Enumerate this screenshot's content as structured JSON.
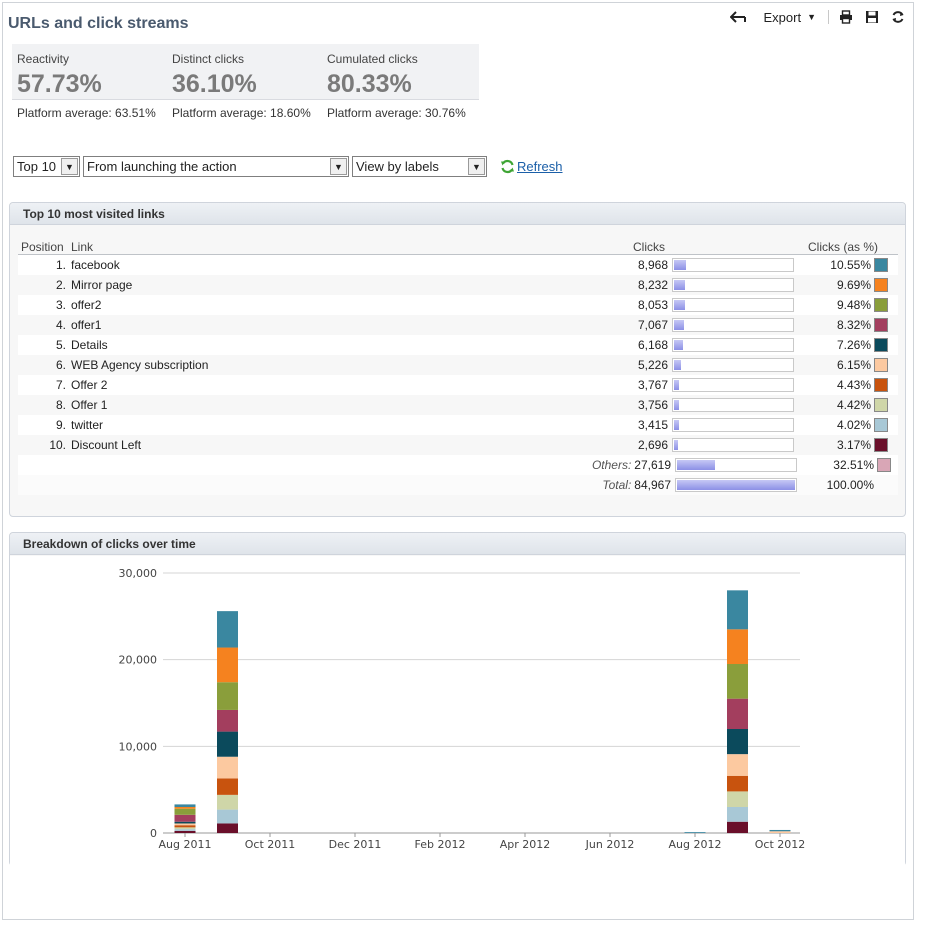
{
  "title": "URLs and click streams",
  "toolbar": {
    "export_label": "Export"
  },
  "kpis": [
    {
      "label": "Reactivity",
      "value": "57.73%",
      "average": "Platform average: 63.51%"
    },
    {
      "label": "Distinct clicks",
      "value": "36.10%",
      "average": "Platform average: 18.60%"
    },
    {
      "label": "Cumulated clicks",
      "value": "80.33%",
      "average": "Platform average: 30.76%"
    }
  ],
  "filters": {
    "top": "Top 10",
    "period": "From launching the action",
    "view": "View by labels",
    "refresh_label": "Refresh"
  },
  "links_panel": {
    "title": "Top 10 most visited links",
    "headers": {
      "position": "Position",
      "link": "Link",
      "clicks": "Clicks",
      "percent": "Clicks (as %)"
    },
    "rows": [
      {
        "pos": "1.",
        "link": "facebook",
        "clicks": "8,968",
        "pct": "10.55%",
        "share": 0.1055,
        "color": "#3a87a0"
      },
      {
        "pos": "2.",
        "link": "Mirror page",
        "clicks": "8,232",
        "pct": "9.69%",
        "share": 0.0969,
        "color": "#f5821f"
      },
      {
        "pos": "3.",
        "link": "offer2",
        "clicks": "8,053",
        "pct": "9.48%",
        "share": 0.0948,
        "color": "#8a9e3b"
      },
      {
        "pos": "4.",
        "link": "offer1",
        "clicks": "7,067",
        "pct": "8.32%",
        "share": 0.0832,
        "color": "#a33e5e"
      },
      {
        "pos": "5.",
        "link": "Details",
        "clicks": "6,168",
        "pct": "7.26%",
        "share": 0.0726,
        "color": "#0b4a5c"
      },
      {
        "pos": "6.",
        "link": "WEB Agency subscription",
        "clicks": "5,226",
        "pct": "6.15%",
        "share": 0.0615,
        "color": "#fcc9a0"
      },
      {
        "pos": "7.",
        "link": "Offer 2",
        "clicks": "3,767",
        "pct": "4.43%",
        "share": 0.0443,
        "color": "#c8530e"
      },
      {
        "pos": "8.",
        "link": "Offer 1",
        "clicks": "3,756",
        "pct": "4.42%",
        "share": 0.0442,
        "color": "#cfd6a8"
      },
      {
        "pos": "9.",
        "link": "twitter",
        "clicks": "3,415",
        "pct": "4.02%",
        "share": 0.0402,
        "color": "#a8c8d6"
      },
      {
        "pos": "10.",
        "link": "Discount Left",
        "clicks": "2,696",
        "pct": "3.17%",
        "share": 0.0317,
        "color": "#6a0f2a"
      }
    ],
    "others": {
      "label": "Others:",
      "clicks": "27,619",
      "pct": "32.51%",
      "share": 0.3251,
      "color": "#d9a6b6"
    },
    "total": {
      "label": "Total:",
      "clicks": "84,967",
      "pct": "100.00%",
      "share": 1.0
    }
  },
  "time_panel": {
    "title": "Breakdown of clicks over time"
  },
  "chart_data": {
    "type": "bar",
    "stacked": true,
    "categories": [
      "Aug 2011",
      "Sep 2011",
      "Aug 2012",
      "Sep 2012",
      "Oct 2012"
    ],
    "x_tick_labels": [
      "Aug 2011",
      "Oct 2011",
      "Dec 2011",
      "Feb 2012",
      "Apr 2012",
      "Jun 2012",
      "Aug 2012",
      "Oct 2012"
    ],
    "y_tick_labels": [
      "0",
      "10,000",
      "20,000",
      "30,000"
    ],
    "ylim": [
      0,
      30000
    ],
    "grid": true,
    "series": [
      {
        "name": "Discount Left",
        "color": "#6a0f2a",
        "values": [
          250,
          1100,
          0,
          1300,
          0
        ]
      },
      {
        "name": "twitter",
        "color": "#a8c8d6",
        "values": [
          200,
          1600,
          0,
          1700,
          0
        ]
      },
      {
        "name": "Offer 1",
        "color": "#cfd6a8",
        "values": [
          200,
          1700,
          0,
          1800,
          0
        ]
      },
      {
        "name": "Offer 2",
        "color": "#c8530e",
        "values": [
          250,
          1900,
          0,
          1800,
          0
        ]
      },
      {
        "name": "WEB Agency subscription",
        "color": "#fcc9a0",
        "values": [
          200,
          2500,
          0,
          2500,
          200
        ]
      },
      {
        "name": "Details",
        "color": "#0b4a5c",
        "values": [
          200,
          2900,
          0,
          2900,
          0
        ]
      },
      {
        "name": "offer1",
        "color": "#a33e5e",
        "values": [
          800,
          2500,
          0,
          3500,
          0
        ]
      },
      {
        "name": "offer2",
        "color": "#8a9e3b",
        "values": [
          700,
          3200,
          0,
          4000,
          0
        ]
      },
      {
        "name": "Mirror page",
        "color": "#f5821f",
        "values": [
          200,
          4000,
          0,
          4000,
          0
        ]
      },
      {
        "name": "facebook",
        "color": "#3a87a0",
        "values": [
          300,
          4200,
          100,
          4500,
          150
        ]
      }
    ]
  }
}
